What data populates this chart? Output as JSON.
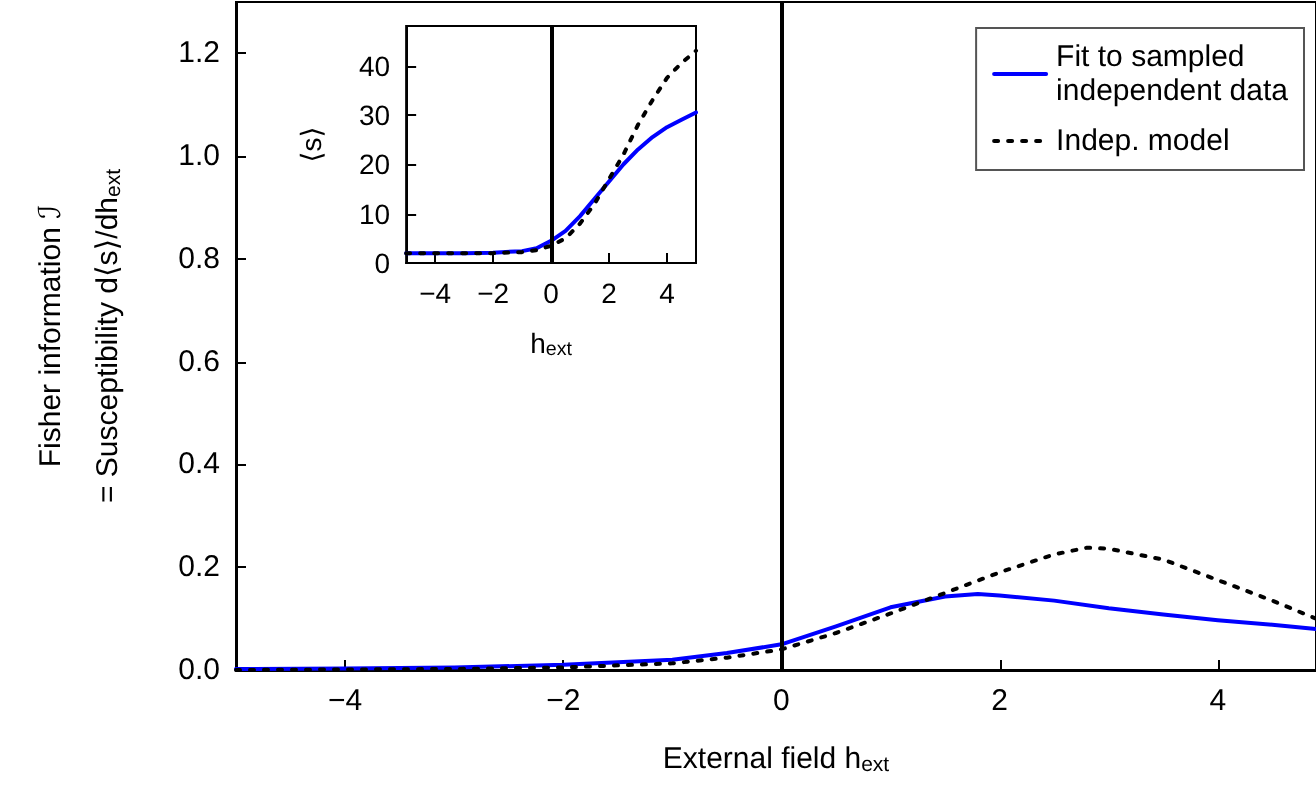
{
  "chart_data": [
    {
      "type": "line",
      "xlabel": "External field h$_{ext}$",
      "ylabel": "Fisher information ℐ\n= Susceptibility d⟨s⟩/dh$_{ext}$",
      "xlim": [
        -5,
        4.9
      ],
      "ylim": [
        0,
        1.3
      ],
      "xticks": [
        -4,
        -2,
        0,
        2,
        4
      ],
      "yticks": [
        {
          "value": 0,
          "label": "0.0"
        },
        0.2,
        0.4,
        0.6,
        0.8,
        {
          "value": 1,
          "label": "1.0"
        },
        1.2
      ],
      "grid": false,
      "legend": "top right",
      "marker": "none",
      "ref_lines": [
        {
          "axis": "x",
          "value": 0,
          "color": "#000000"
        }
      ],
      "series": [
        {
          "name": "Fit to sampled\nindependent data",
          "color": "#0000ff",
          "line_style": "solid",
          "x": [
            -5,
            -4,
            -3,
            -2,
            -1,
            -0.5,
            0,
            0.5,
            1,
            1.5,
            1.8,
            2,
            2.5,
            3,
            3.5,
            4,
            4.5,
            4.9
          ],
          "values": [
            0.002,
            0.003,
            0.005,
            0.01,
            0.02,
            0.033,
            0.05,
            0.085,
            0.122,
            0.143,
            0.148,
            0.145,
            0.135,
            0.12,
            0.108,
            0.097,
            0.088,
            0.08
          ]
        },
        {
          "name": "Indep. model",
          "color": "#000000",
          "line_style": "dotted",
          "x": [
            -5,
            -4,
            -3,
            -2,
            -1,
            -0.5,
            0,
            0.5,
            1,
            1.5,
            2,
            2.5,
            2.8,
            3,
            3.5,
            4,
            4.5,
            4.9
          ],
          "values": [
            0.0,
            0.001,
            0.002,
            0.005,
            0.013,
            0.024,
            0.04,
            0.072,
            0.11,
            0.15,
            0.19,
            0.225,
            0.238,
            0.236,
            0.215,
            0.175,
            0.135,
            0.1
          ]
        }
      ]
    },
    {
      "type": "line",
      "xlabel": "h$_{ext}$",
      "ylabel": "⟨s⟩",
      "xlim": [
        -5,
        5
      ],
      "ylim": [
        0,
        48
      ],
      "xticks": [
        -4,
        -2,
        0,
        2,
        4
      ],
      "yticks": [
        0,
        10,
        20,
        30,
        40
      ],
      "grid": false,
      "marker": "none",
      "ref_lines": [
        {
          "axis": "x",
          "value": 0,
          "color": "#000000"
        }
      ],
      "series": [
        {
          "color": "#0000ff",
          "line_style": "solid",
          "x": [
            -5,
            -4,
            -3,
            -2,
            -1,
            -0.5,
            0,
            0.5,
            1,
            1.5,
            2,
            2.5,
            3,
            3.5,
            4,
            4.5,
            5
          ],
          "values": [
            2,
            2,
            2,
            2.1,
            2.4,
            3,
            4.5,
            6.5,
            9.5,
            13,
            16.5,
            20,
            23,
            25.5,
            27.5,
            29,
            30.5
          ]
        },
        {
          "color": "#000000",
          "line_style": "dotted",
          "x": [
            -5,
            -4,
            -3,
            -2,
            -1,
            -0.5,
            0,
            0.5,
            1,
            1.5,
            2,
            2.5,
            3,
            3.5,
            4,
            4.5,
            5
          ],
          "values": [
            2,
            2,
            2,
            2,
            2.2,
            2.6,
            3.5,
            5,
            8,
            12,
            17,
            22,
            28,
            33,
            37.5,
            40.5,
            43
          ]
        }
      ]
    }
  ]
}
